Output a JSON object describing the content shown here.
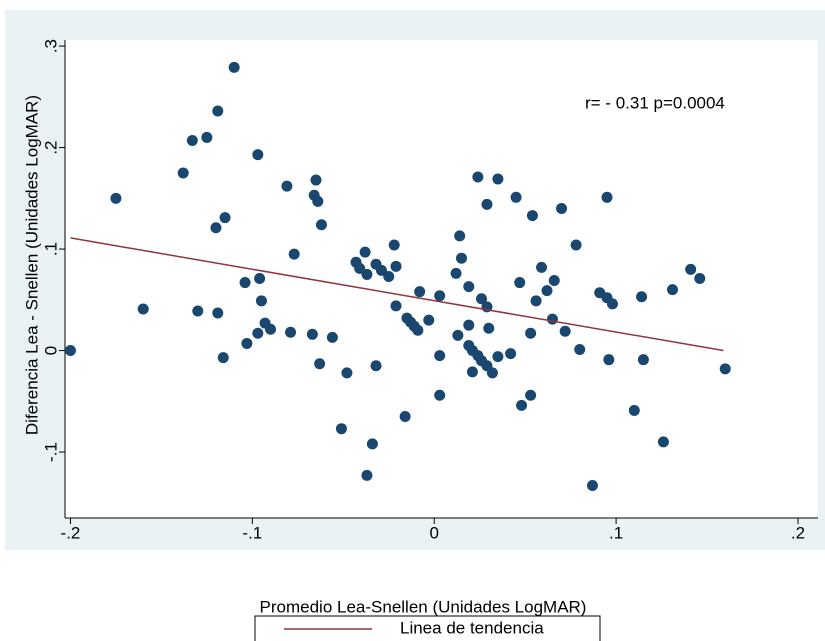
{
  "chart_data": {
    "type": "scatter",
    "annotation": "r= - 0.31 p=0.0004",
    "x_label": "Promedio Lea-Snellen (Unidades LogMAR)",
    "y_label": "Diferencia Lea - Snellen (Unidades LogMAR)",
    "xlim": [
      -0.203,
      0.211
    ],
    "ylim": [
      -0.165,
      0.306
    ],
    "xticks": [
      {
        "value": -0.2,
        "label": "-.2"
      },
      {
        "value": -0.1,
        "label": "-.1"
      },
      0,
      {
        "value": 0.1,
        "label": ".1"
      },
      {
        "value": 0.2,
        "label": ".2"
      }
    ],
    "yticks": [
      {
        "value": -0.1,
        "label": "-.1"
      },
      0,
      {
        "value": 0.1,
        "label": ".1"
      },
      {
        "value": 0.2,
        "label": ".2"
      },
      {
        "value": 0.3,
        "label": ".3"
      }
    ],
    "legend": "bottom",
    "series": [
      {
        "type": "scatter",
        "color": "#1a476f",
        "x": [
          -0.2,
          -0.175,
          -0.16,
          -0.138,
          -0.133,
          -0.13,
          -0.125,
          -0.119,
          -0.12,
          -0.119,
          -0.115,
          -0.116,
          -0.11,
          -0.104,
          -0.103,
          -0.097,
          -0.097,
          -0.096,
          -0.095,
          -0.093,
          -0.09,
          -0.081,
          -0.079,
          -0.077,
          -0.067,
          -0.066,
          -0.065,
          -0.064,
          -0.063,
          -0.062,
          -0.056,
          -0.051,
          -0.048,
          -0.043,
          -0.041,
          -0.038,
          -0.037,
          -0.037,
          -0.034,
          -0.032,
          -0.032,
          -0.029,
          -0.025,
          -0.022,
          -0.021,
          -0.021,
          -0.016,
          -0.015,
          -0.013,
          -0.011,
          -0.009,
          -0.008,
          -0.003,
          0.003,
          0.003,
          0.003,
          0.012,
          0.013,
          0.014,
          0.015,
          0.019,
          0.019,
          0.019,
          0.021,
          0.021,
          0.024,
          0.024,
          0.026,
          0.026,
          0.029,
          0.029,
          0.029,
          0.03,
          0.032,
          0.035,
          0.035,
          0.042,
          0.045,
          0.047,
          0.048,
          0.053,
          0.053,
          0.054,
          0.056,
          0.059,
          0.062,
          0.066,
          0.065,
          0.07,
          0.072,
          0.078,
          0.08,
          0.087,
          0.091,
          0.095,
          0.095,
          0.096,
          0.098,
          0.11,
          0.114,
          0.115,
          0.126,
          0.131,
          0.141,
          0.146,
          0.16
        ],
        "values": [
          0.0,
          0.15,
          0.041,
          0.175,
          0.207,
          0.039,
          0.21,
          0.236,
          0.121,
          0.037,
          0.131,
          -0.007,
          0.279,
          0.067,
          0.007,
          0.017,
          0.193,
          0.071,
          0.049,
          0.027,
          0.021,
          0.162,
          0.018,
          0.095,
          0.016,
          0.153,
          0.168,
          0.147,
          -0.013,
          0.124,
          0.013,
          -0.077,
          -0.022,
          0.087,
          0.081,
          0.097,
          0.075,
          -0.123,
          -0.092,
          -0.015,
          0.085,
          0.079,
          0.073,
          0.104,
          0.083,
          0.044,
          -0.065,
          0.032,
          0.028,
          0.024,
          0.02,
          0.058,
          0.03,
          0.054,
          -0.005,
          -0.044,
          0.076,
          0.015,
          0.113,
          0.091,
          0.025,
          0.063,
          0.005,
          0.0,
          -0.021,
          0.171,
          -0.005,
          0.051,
          -0.01,
          0.043,
          0.144,
          -0.015,
          0.022,
          -0.022,
          -0.006,
          0.169,
          -0.003,
          0.151,
          0.067,
          -0.054,
          -0.044,
          0.017,
          0.133,
          0.049,
          0.082,
          0.059,
          0.069,
          0.031,
          0.14,
          0.019,
          0.104,
          0.001,
          -0.133,
          0.057,
          0.052,
          0.151,
          -0.009,
          0.046,
          -0.059,
          0.053,
          -0.009,
          -0.09,
          0.06,
          0.08,
          0.071,
          -0.018
        ]
      },
      {
        "type": "line",
        "name": "Linea de tendencia",
        "color": "#90353b",
        "x": [
          -0.2,
          0.159
        ],
        "values": [
          0.111,
          0.0
        ]
      }
    ]
  }
}
